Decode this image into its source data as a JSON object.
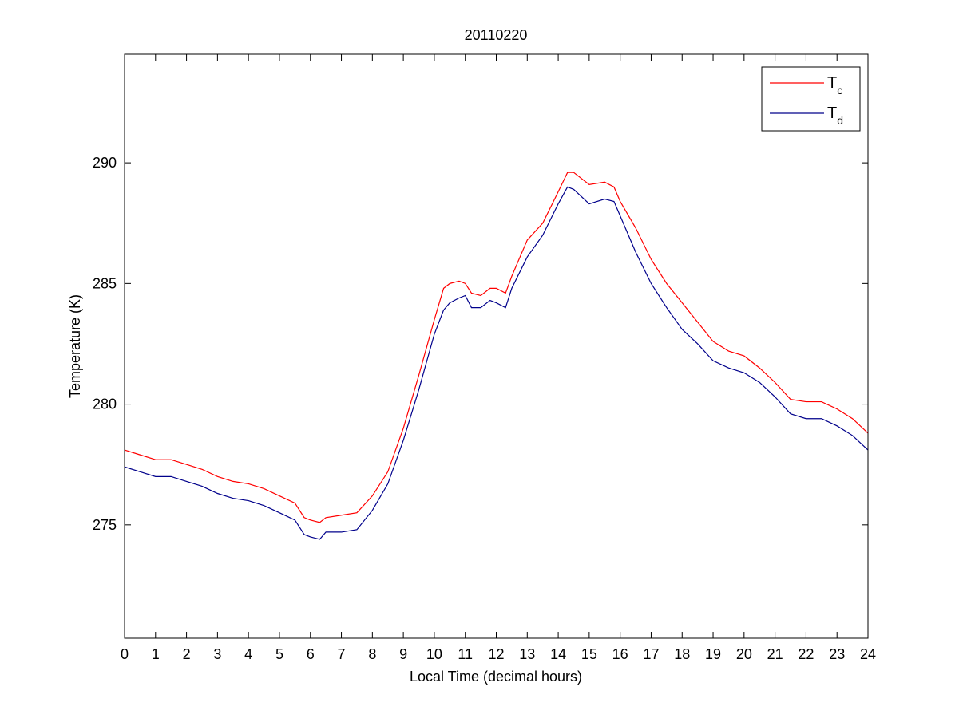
{
  "chart_data": {
    "type": "line",
    "title": "20110220",
    "xlabel": "Local Time (decimal hours)",
    "ylabel": "Temperature (K)",
    "xlim": [
      0,
      24
    ],
    "ylim": [
      270.3,
      294.5
    ],
    "xticks": [
      0,
      1,
      2,
      3,
      4,
      5,
      6,
      7,
      8,
      9,
      10,
      11,
      12,
      13,
      14,
      15,
      16,
      17,
      18,
      19,
      20,
      21,
      22,
      23,
      24
    ],
    "yticks": [
      275,
      280,
      285,
      290
    ],
    "grid": false,
    "legend_position": "top-right",
    "series": [
      {
        "name": "T",
        "name_subscript": "c",
        "color": "#ff0000",
        "x": [
          0,
          0.5,
          1,
          1.5,
          2,
          2.5,
          3,
          3.5,
          4,
          4.5,
          5,
          5.5,
          5.8,
          6,
          6.3,
          6.5,
          7,
          7.5,
          8,
          8.5,
          9,
          9.5,
          10,
          10.3,
          10.5,
          10.8,
          11,
          11.2,
          11.5,
          11.8,
          12,
          12.3,
          12.5,
          13,
          13.5,
          14,
          14.3,
          14.5,
          15,
          15.5,
          15.8,
          16,
          16.5,
          17,
          17.5,
          18,
          18.5,
          19,
          19.5,
          20,
          20.5,
          21,
          21.5,
          22,
          22.5,
          23,
          23.5,
          24
        ],
        "y": [
          278.1,
          277.9,
          277.7,
          277.7,
          277.5,
          277.3,
          277.0,
          276.8,
          276.7,
          276.5,
          276.2,
          275.9,
          275.3,
          275.2,
          275.1,
          275.3,
          275.4,
          275.5,
          276.2,
          277.2,
          279.0,
          281.2,
          283.5,
          284.8,
          285.0,
          285.1,
          285.0,
          284.6,
          284.5,
          284.8,
          284.8,
          284.6,
          285.3,
          286.8,
          287.5,
          288.8,
          289.6,
          289.6,
          289.1,
          289.2,
          289.0,
          288.4,
          287.3,
          286.0,
          285.0,
          284.2,
          283.4,
          282.6,
          282.2,
          282.0,
          281.5,
          280.9,
          280.2,
          280.1,
          280.1,
          279.8,
          279.4,
          278.8
        ]
      },
      {
        "name": "T",
        "name_subscript": "d",
        "color": "#00008b",
        "x": [
          0,
          0.5,
          1,
          1.5,
          2,
          2.5,
          3,
          3.5,
          4,
          4.5,
          5,
          5.5,
          5.8,
          6,
          6.3,
          6.5,
          7,
          7.5,
          8,
          8.5,
          9,
          9.5,
          10,
          10.3,
          10.5,
          10.8,
          11,
          11.2,
          11.5,
          11.8,
          12,
          12.3,
          12.5,
          13,
          13.5,
          14,
          14.3,
          14.5,
          15,
          15.5,
          15.8,
          16,
          16.5,
          17,
          17.5,
          18,
          18.5,
          19,
          19.5,
          20,
          20.5,
          21,
          21.5,
          22,
          22.5,
          23,
          23.5,
          24
        ],
        "y": [
          277.4,
          277.2,
          277.0,
          277.0,
          276.8,
          276.6,
          276.3,
          276.1,
          276.0,
          275.8,
          275.5,
          275.2,
          274.6,
          274.5,
          274.4,
          274.7,
          274.7,
          274.8,
          275.6,
          276.7,
          278.5,
          280.6,
          282.9,
          283.9,
          284.2,
          284.4,
          284.5,
          284.0,
          284.0,
          284.3,
          284.2,
          284.0,
          284.8,
          286.1,
          287.0,
          288.3,
          289.0,
          288.9,
          288.3,
          288.5,
          288.4,
          287.8,
          286.3,
          285.0,
          284.0,
          283.1,
          282.5,
          281.8,
          281.5,
          281.3,
          280.9,
          280.3,
          279.6,
          279.4,
          279.4,
          279.1,
          278.7,
          278.1
        ]
      }
    ]
  }
}
